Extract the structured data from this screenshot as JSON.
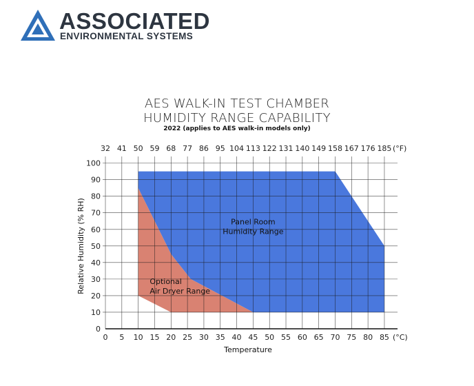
{
  "logo": {
    "line1": "ASSOCIATED",
    "line2": "ENVIRONMENTAL SYSTEMS",
    "colors": {
      "mark": "#2f6fb8",
      "text": "#2d3540"
    }
  },
  "chart_data": {
    "type": "area",
    "title_line1": "AES WALK-IN TEST CHAMBER",
    "title_line2": "HUMIDITY RANGE CAPABILITY",
    "subtitle": "2022 (applies to AES walk-in models only)",
    "xlabel": "Temperature",
    "ylabel": "Relative Humidity (% RH)",
    "x_unit": "(°C)",
    "x_top_unit": "(°F)",
    "xlim": [
      0,
      89
    ],
    "ylim": [
      0,
      104
    ],
    "x_ticks": [
      0,
      5,
      10,
      15,
      20,
      25,
      30,
      35,
      40,
      45,
      50,
      55,
      60,
      65,
      70,
      75,
      80,
      85
    ],
    "y_ticks": [
      0,
      10,
      20,
      30,
      40,
      50,
      60,
      70,
      80,
      90,
      100
    ],
    "x_top_ticks": [
      {
        "c": 0,
        "f": "32"
      },
      {
        "c": 5,
        "f": "41"
      },
      {
        "c": 10,
        "f": "50"
      },
      {
        "c": 15,
        "f": "59"
      },
      {
        "c": 20,
        "f": "68"
      },
      {
        "c": 25,
        "f": "77"
      },
      {
        "c": 30,
        "f": "86"
      },
      {
        "c": 35,
        "f": "95"
      },
      {
        "c": 40,
        "f": "104"
      },
      {
        "c": 45,
        "f": "113"
      },
      {
        "c": 50,
        "f": "122"
      },
      {
        "c": 55,
        "f": "131"
      },
      {
        "c": 60,
        "f": "140"
      },
      {
        "c": 65,
        "f": "149"
      },
      {
        "c": 70,
        "f": "158"
      },
      {
        "c": 75,
        "f": "167"
      },
      {
        "c": 80,
        "f": "176"
      },
      {
        "c": 85,
        "f": "185"
      }
    ],
    "grid": true,
    "series": [
      {
        "name": "Panel Room Humidity Range",
        "color": "#4a78dd",
        "polygon": [
          [
            10,
            95
          ],
          [
            70,
            95
          ],
          [
            85,
            50
          ],
          [
            85,
            10
          ],
          [
            45,
            10
          ],
          [
            26,
            30
          ],
          [
            20,
            45
          ],
          [
            15,
            65
          ],
          [
            10,
            85
          ]
        ],
        "label_lines": [
          "Panel Room",
          "Humidity Range"
        ],
        "label_anchor": [
          45,
          63
        ]
      },
      {
        "name": "Optional Air Dryer Range",
        "color": "#d98272",
        "polygon": [
          [
            10,
            85
          ],
          [
            15,
            65
          ],
          [
            20,
            45
          ],
          [
            26,
            30
          ],
          [
            45,
            10
          ],
          [
            20,
            10
          ],
          [
            10,
            20
          ]
        ],
        "label_lines": [
          "Optional",
          "Air Dryer Range"
        ],
        "label_anchor": [
          13.5,
          27
        ]
      }
    ]
  }
}
